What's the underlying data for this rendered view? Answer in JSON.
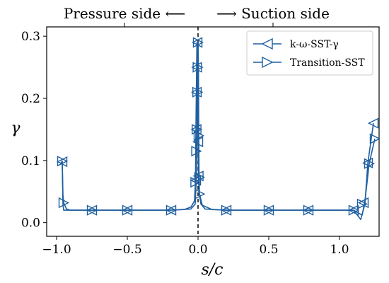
{
  "chart_data": {
    "type": "line",
    "title_left": "Pressure side ⟵",
    "title_right": "⟶ Suction side",
    "xlabel": "s/c",
    "ylabel": "γ",
    "xlim": [
      -1.07,
      1.28
    ],
    "ylim": [
      -0.022,
      0.315
    ],
    "xticks": [
      -1.0,
      -0.5,
      0.0,
      0.5,
      1.0
    ],
    "xtick_labels": [
      "−1.0",
      "−0.5",
      "0.0",
      "0.5",
      "1.0"
    ],
    "yticks": [
      0.0,
      0.1,
      0.2,
      0.3
    ],
    "ytick_labels": [
      "0.0",
      "0.1",
      "0.2",
      "0.3"
    ],
    "vline_x": 0.0,
    "legend_position": "top-right",
    "colors": {
      "series": "#1f5fa0",
      "axis": "#000000",
      "vline": "#000000"
    },
    "series": [
      {
        "name": "k-ω-SST-γ",
        "marker": "triangle-left",
        "points": [
          [
            -0.97,
            0.098
          ],
          [
            -0.96,
            0.095
          ],
          [
            -0.955,
            0.03
          ],
          [
            -0.95,
            0.02
          ],
          [
            -0.75,
            0.02
          ],
          [
            -0.5,
            0.02
          ],
          [
            -0.2,
            0.02
          ],
          [
            -0.1,
            0.021
          ],
          [
            -0.05,
            0.025
          ],
          [
            -0.025,
            0.035
          ],
          [
            -0.018,
            0.068
          ],
          [
            -0.015,
            0.15
          ],
          [
            -0.012,
            0.21
          ],
          [
            -0.01,
            0.25
          ],
          [
            -0.008,
            0.29
          ],
          [
            -0.004,
            0.29
          ],
          [
            0.0,
            0.13
          ],
          [
            0.003,
            0.075
          ],
          [
            0.008,
            0.048
          ],
          [
            0.02,
            0.03
          ],
          [
            0.05,
            0.022
          ],
          [
            0.2,
            0.02
          ],
          [
            0.5,
            0.02
          ],
          [
            0.78,
            0.02
          ],
          [
            1.1,
            0.02
          ],
          [
            1.15,
            0.005
          ],
          [
            1.18,
            0.03
          ],
          [
            1.2,
            0.095
          ],
          [
            1.24,
            0.16
          ]
        ],
        "marker_points": [
          [
            -0.96,
            0.098
          ],
          [
            -0.75,
            0.02
          ],
          [
            -0.5,
            0.02
          ],
          [
            -0.19,
            0.02
          ],
          [
            -0.015,
            0.068
          ],
          [
            -0.012,
            0.15
          ],
          [
            -0.01,
            0.21
          ],
          [
            -0.008,
            0.25
          ],
          [
            -0.005,
            0.29
          ],
          [
            0.0,
            0.13
          ],
          [
            0.003,
            0.075
          ],
          [
            0.2,
            0.02
          ],
          [
            0.5,
            0.02
          ],
          [
            0.78,
            0.02
          ],
          [
            1.1,
            0.02
          ],
          [
            1.17,
            0.032
          ],
          [
            1.2,
            0.096
          ],
          [
            1.24,
            0.16
          ]
        ]
      },
      {
        "name": "Transition-SST",
        "marker": "triangle-right",
        "points": [
          [
            -0.96,
            0.1
          ],
          [
            -0.955,
            0.045
          ],
          [
            -0.95,
            0.032
          ],
          [
            -0.93,
            0.022
          ],
          [
            -0.9,
            0.02
          ],
          [
            -0.75,
            0.02
          ],
          [
            -0.5,
            0.02
          ],
          [
            -0.2,
            0.02
          ],
          [
            -0.05,
            0.022
          ],
          [
            -0.02,
            0.03
          ],
          [
            -0.012,
            0.07
          ],
          [
            -0.008,
            0.14
          ],
          [
            -0.005,
            0.21
          ],
          [
            -0.003,
            0.25
          ],
          [
            0.0,
            0.29
          ],
          [
            0.003,
            0.25
          ],
          [
            0.005,
            0.14
          ],
          [
            0.007,
            0.08
          ],
          [
            0.01,
            0.047
          ],
          [
            0.03,
            0.028
          ],
          [
            0.1,
            0.021
          ],
          [
            0.2,
            0.02
          ],
          [
            0.5,
            0.02
          ],
          [
            0.78,
            0.02
          ],
          [
            1.1,
            0.02
          ],
          [
            1.16,
            0.012
          ],
          [
            1.18,
            0.035
          ],
          [
            1.21,
            0.095
          ],
          [
            1.25,
            0.135
          ]
        ],
        "marker_points": [
          [
            -0.96,
            0.099
          ],
          [
            -0.95,
            0.032
          ],
          [
            -0.75,
            0.02
          ],
          [
            -0.5,
            0.02
          ],
          [
            -0.19,
            0.02
          ],
          [
            -0.018,
            0.065
          ],
          [
            -0.012,
            0.115
          ],
          [
            -0.009,
            0.15
          ],
          [
            -0.004,
            0.21
          ],
          [
            -0.002,
            0.25
          ],
          [
            0.0,
            0.29
          ],
          [
            0.005,
            0.14
          ],
          [
            0.01,
            0.073
          ],
          [
            0.012,
            0.046
          ],
          [
            0.2,
            0.02
          ],
          [
            0.5,
            0.02
          ],
          [
            0.78,
            0.02
          ],
          [
            1.1,
            0.02
          ],
          [
            1.16,
            0.03
          ],
          [
            1.21,
            0.095
          ],
          [
            1.25,
            0.135
          ]
        ]
      }
    ]
  }
}
